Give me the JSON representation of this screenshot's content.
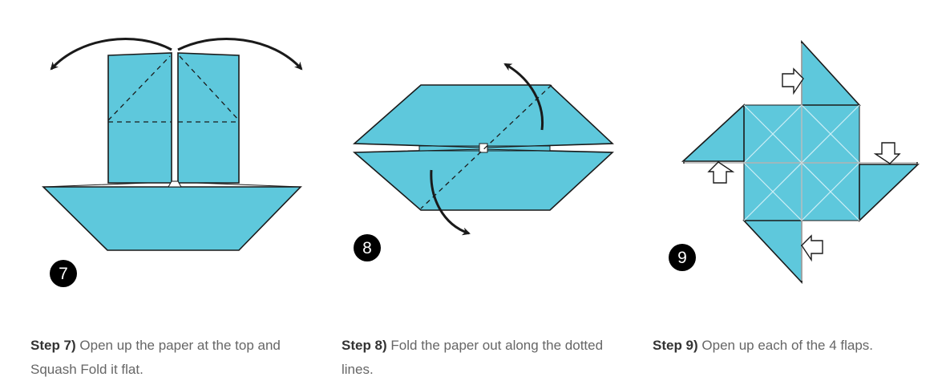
{
  "colors": {
    "paper": "#5ec8dc",
    "outline": "#1a1a1a",
    "crease": "#cfeff6",
    "badge": "#000000"
  },
  "steps": [
    {
      "number": "7",
      "label": "Step 7)",
      "text": " Open up the paper at the top and Squash Fold it flat."
    },
    {
      "number": "8",
      "label": "Step 8)",
      "text": " Fold the paper out along the dotted lines."
    },
    {
      "number": "9",
      "label": "Step 9)",
      "text": " Open up each of the 4 flaps."
    }
  ]
}
